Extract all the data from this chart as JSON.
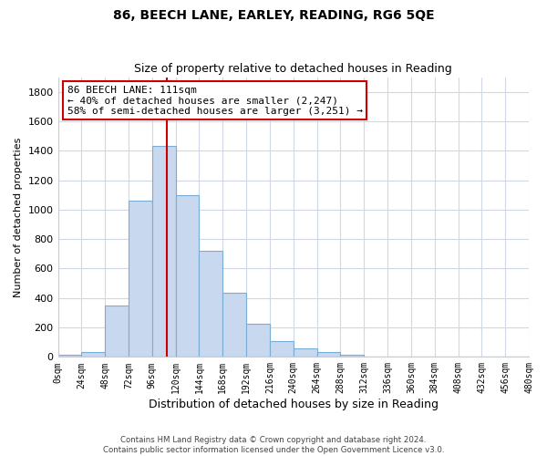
{
  "title": "86, BEECH LANE, EARLEY, READING, RG6 5QE",
  "subtitle": "Size of property relative to detached houses in Reading",
  "xlabel": "Distribution of detached houses by size in Reading",
  "ylabel": "Number of detached properties",
  "bar_color": "#c8d8ee",
  "bar_edge_color": "#7aadd4",
  "vline_x": 111,
  "vline_color": "#cc0000",
  "annotation_title": "86 BEECH LANE: 111sqm",
  "annotation_line1": "← 40% of detached houses are smaller (2,247)",
  "annotation_line2": "58% of semi-detached houses are larger (3,251) →",
  "bin_edges": [
    0,
    24,
    48,
    72,
    96,
    120,
    144,
    168,
    192,
    216,
    240,
    264,
    288,
    312,
    336,
    360,
    384,
    408,
    432,
    456,
    480
  ],
  "bin_counts": [
    15,
    35,
    350,
    1060,
    1430,
    1100,
    720,
    435,
    225,
    105,
    55,
    30,
    15,
    5,
    2,
    2,
    1,
    0,
    0,
    0
  ],
  "ylim": [
    0,
    1900
  ],
  "yticks": [
    0,
    200,
    400,
    600,
    800,
    1000,
    1200,
    1400,
    1600,
    1800
  ],
  "xtick_labels": [
    "0sqm",
    "24sqm",
    "48sqm",
    "72sqm",
    "96sqm",
    "120sqm",
    "144sqm",
    "168sqm",
    "192sqm",
    "216sqm",
    "240sqm",
    "264sqm",
    "288sqm",
    "312sqm",
    "336sqm",
    "360sqm",
    "384sqm",
    "408sqm",
    "432sqm",
    "456sqm",
    "480sqm"
  ],
  "footer_line1": "Contains HM Land Registry data © Crown copyright and database right 2024.",
  "footer_line2": "Contains public sector information licensed under the Open Government Licence v3.0.",
  "background_color": "#ffffff",
  "grid_color": "#d0d8e8"
}
